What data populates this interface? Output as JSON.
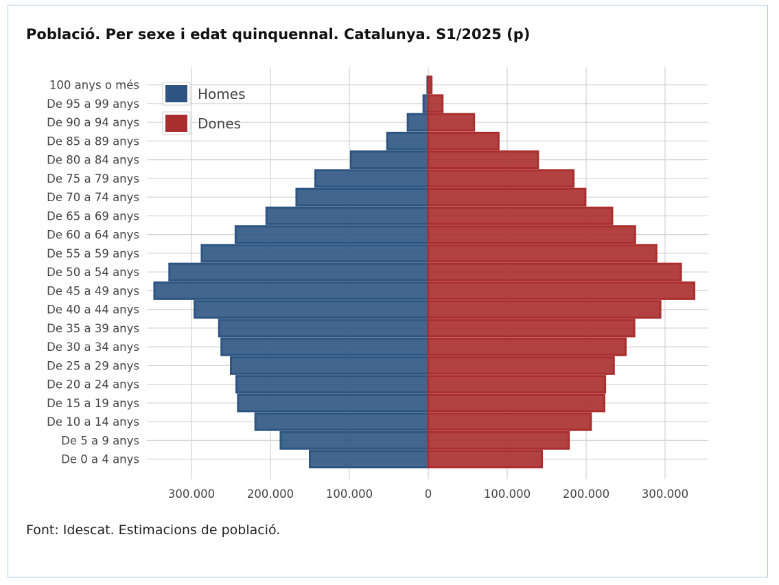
{
  "chart_data": {
    "type": "bar",
    "orientation": "horizontal",
    "title": "Població. Per sexe i edat quinquennal. Catalunya. S1/2025 (p)",
    "source": "Font: Idescat. Estimacions de població.",
    "categories": [
      "De 0 a 4 anys",
      "De 5 a 9 anys",
      "De 10 a 14 anys",
      "De 15 a 19 anys",
      "De 20 a 24 anys",
      "De 25 a 29 anys",
      "De 30 a 34 anys",
      "De 35 a 39 anys",
      "De 40 a 44 anys",
      "De 45 a 49 anys",
      "De 50 a 54 anys",
      "De 55 a 59 anys",
      "De 60 a 64 anys",
      "De 65 a 69 anys",
      "De 70 a 74 anys",
      "De 75 a 79 anys",
      "De 80 a 84 anys",
      "De 85 a 89 anys",
      "De 90 a 94 anys",
      "De 95 a 99 anys",
      "100 anys o més"
    ],
    "series": [
      {
        "name": "Homes",
        "color": "#2e5582",
        "values": [
          150000,
          187000,
          219000,
          241000,
          243000,
          250000,
          262000,
          265000,
          296000,
          347000,
          328000,
          287000,
          244000,
          205000,
          167000,
          143000,
          98000,
          52000,
          26000,
          6000,
          1000
        ]
      },
      {
        "name": "Dones",
        "color": "#aa2e2e",
        "values": [
          144000,
          178000,
          206000,
          223000,
          224000,
          235000,
          250000,
          261000,
          294000,
          337000,
          320000,
          289000,
          262000,
          233000,
          199000,
          184000,
          139000,
          89000,
          58000,
          18000,
          4000
        ]
      }
    ],
    "xaxis": {
      "ticks": [
        -300000,
        -200000,
        -100000,
        0,
        100000,
        200000,
        300000
      ],
      "tick_labels": [
        "300.000",
        "200.000",
        "100.000",
        "0",
        "100.000",
        "200.000",
        "300.000"
      ],
      "range": [
        -350000,
        355000
      ]
    },
    "grid": true,
    "legend_position": "top-left"
  }
}
